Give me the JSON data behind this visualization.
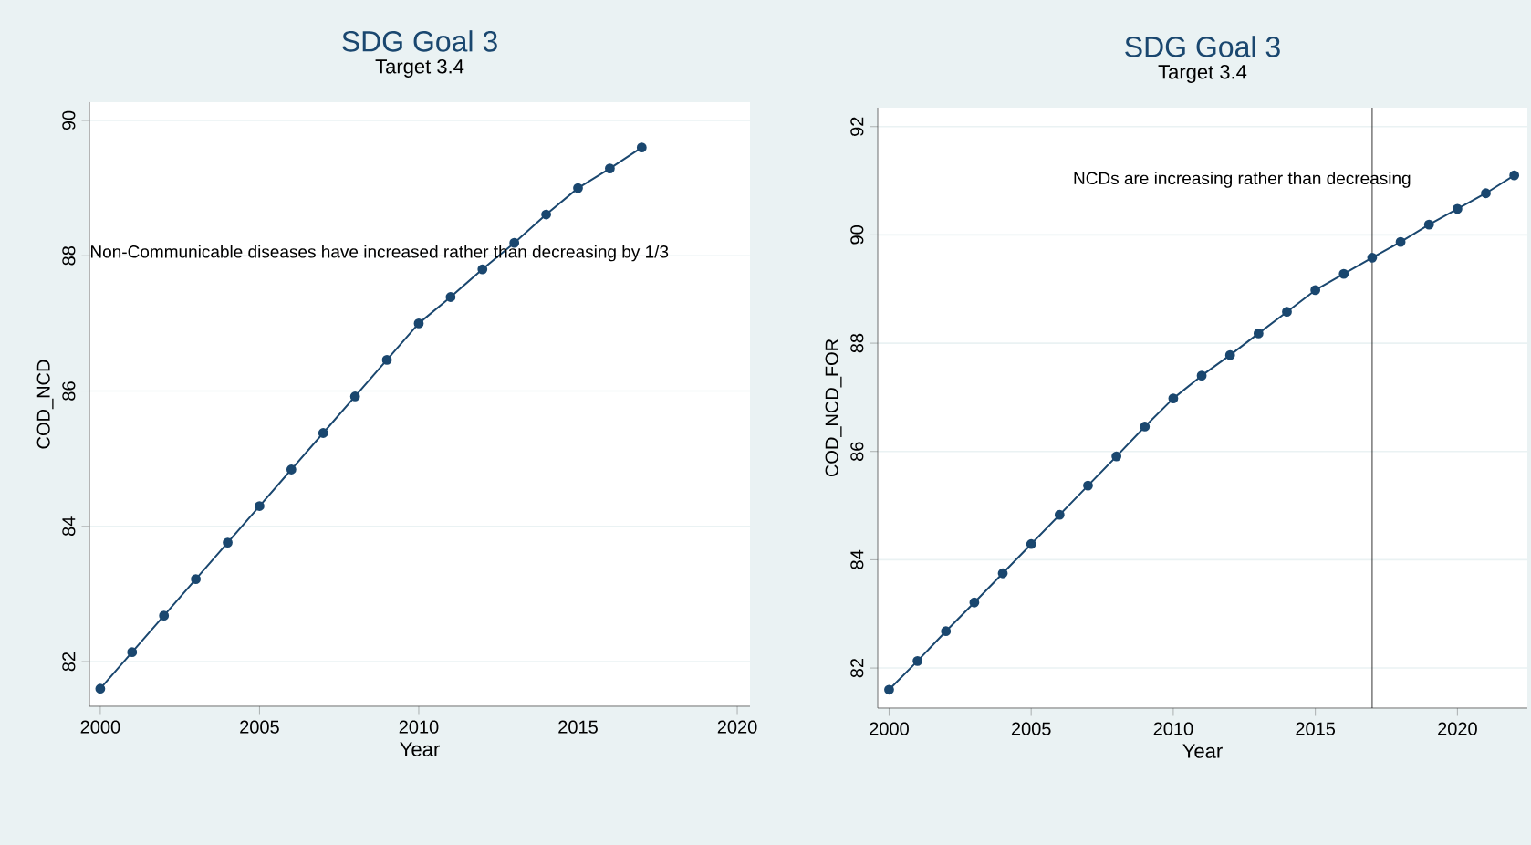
{
  "chart_data": [
    {
      "type": "line",
      "title": "SDG Goal 3",
      "subtitle": "Target 3.4",
      "xlabel": "Year",
      "ylabel": "COD_NCD",
      "x": [
        2000,
        2001,
        2002,
        2003,
        2004,
        2005,
        2006,
        2007,
        2008,
        2009,
        2010,
        2011,
        2012,
        2013,
        2014,
        2015,
        2016,
        2017
      ],
      "series": [
        {
          "color": "#1a476f",
          "values": [
            81.6,
            82.14,
            82.68,
            83.22,
            83.76,
            84.3,
            84.84,
            85.38,
            85.92,
            86.46,
            87.0,
            87.39,
            87.8,
            88.19,
            88.61,
            89.0,
            89.29,
            89.6
          ]
        }
      ],
      "xlim": [
        1999.66,
        2020.4
      ],
      "ylim": [
        81.34,
        90.27
      ],
      "xticks": [
        2000,
        2005,
        2010,
        2015,
        2020
      ],
      "yticks": [
        82,
        84,
        86,
        88,
        90
      ],
      "grid": "y",
      "marker": "circle",
      "line_style": "solid",
      "ref_lines": [
        {
          "axis": "x",
          "value": 2015,
          "color": "#000000"
        }
      ],
      "annotations": [
        "Non-Communicable diseases have increased rather than decreasing by 1/3"
      ]
    },
    {
      "type": "line",
      "title": "SDG Goal 3",
      "subtitle": "Target 3.4",
      "xlabel": "Year",
      "ylabel": "COD_NCD_FOR",
      "x": [
        2000,
        2001,
        2002,
        2003,
        2004,
        2005,
        2006,
        2007,
        2008,
        2009,
        2010,
        2011,
        2012,
        2013,
        2014,
        2015,
        2016,
        2017,
        2018,
        2019,
        2020,
        2021,
        2022
      ],
      "series": [
        {
          "color": "#1a476f",
          "values": [
            81.6,
            82.13,
            82.68,
            83.21,
            83.75,
            84.29,
            84.83,
            85.37,
            85.91,
            86.46,
            86.98,
            87.4,
            87.78,
            88.18,
            88.58,
            88.98,
            89.28,
            89.58,
            89.87,
            90.19,
            90.48,
            90.77,
            91.1
          ]
        }
      ],
      "xlim": [
        1999.6,
        2022.46
      ],
      "ylim": [
        81.26,
        92.35
      ],
      "xticks": [
        2000,
        2005,
        2010,
        2015,
        2020
      ],
      "yticks": [
        82,
        84,
        86,
        88,
        90,
        92
      ],
      "grid": "y",
      "marker": "circle",
      "line_style": "solid",
      "ref_lines": [
        {
          "axis": "x",
          "value": 2017,
          "color": "#000000"
        }
      ],
      "annotations": [
        "NCDs are increasing rather than decreasing"
      ]
    }
  ]
}
